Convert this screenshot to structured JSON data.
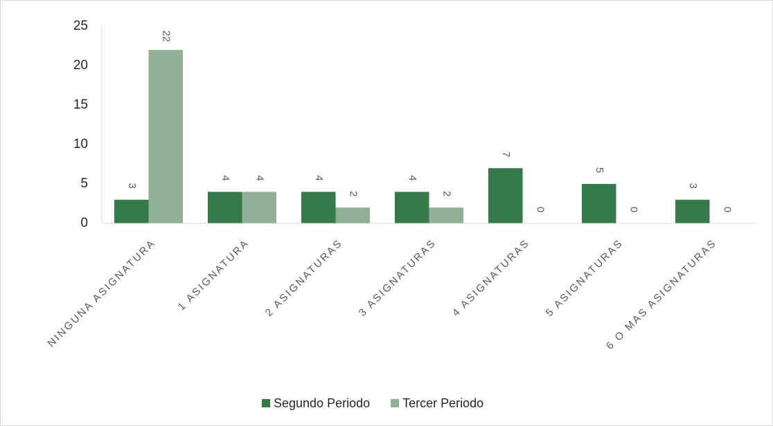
{
  "chart_data": {
    "type": "bar",
    "categories": [
      "NINGUNA ASIGNATURA",
      "1 ASIGNATURA",
      "2 ASIGNATURAS",
      "3 ASIGNATURAS",
      "4 ASIGNATURAS",
      "5 ASIGNATURAS",
      "6 O MAS ASIGNATURAS"
    ],
    "series": [
      {
        "name": "Segundo Periodo",
        "color": "#357a4a",
        "values": [
          3,
          4,
          4,
          4,
          7,
          5,
          3
        ]
      },
      {
        "name": "Tercer Periodo",
        "color": "#8fb095",
        "values": [
          22,
          4,
          2,
          2,
          0,
          0,
          0
        ]
      }
    ],
    "ylim": [
      0,
      25
    ],
    "yticks": [
      0,
      5,
      10,
      15,
      20,
      25
    ],
    "grid": false,
    "legend": "bottom"
  }
}
